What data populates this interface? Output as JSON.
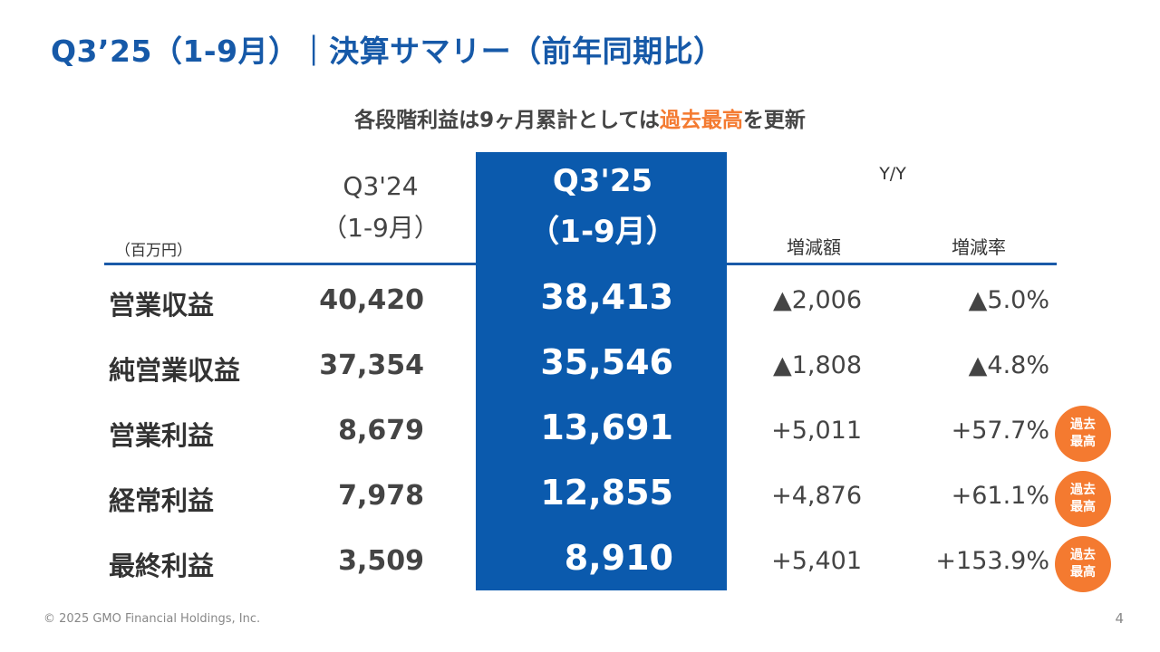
{
  "title": "Q3’25（1-9月）｜決算サマリー（前年同期比）",
  "subtitle": {
    "before": "各段階利益は9ヶ月累計としては",
    "highlight": "過去最高",
    "after": "を更新"
  },
  "table": {
    "unit": "（百万円）",
    "header_prev": {
      "line1": "Q3'24",
      "line2": "（1-9月）"
    },
    "header_cur": {
      "line1": "Q3'25",
      "line2": "（1-9月）"
    },
    "header_yy": "Y/Y",
    "header_change_amount": "増減額",
    "header_change_rate": "増減率",
    "badge": {
      "line1": "過去",
      "line2": "最高"
    },
    "rows": [
      {
        "label": "営業収益",
        "prev": "40,420",
        "cur": "38,413",
        "change_amount": "▲2,006",
        "change_rate": "▲5.0%",
        "record": false
      },
      {
        "label": "純営業収益",
        "prev": "37,354",
        "cur": "35,546",
        "change_amount": "▲1,808",
        "change_rate": "▲4.8%",
        "record": false
      },
      {
        "label": "営業利益",
        "prev": "8,679",
        "cur": "13,691",
        "change_amount": "+5,011",
        "change_rate": "+57.7%",
        "record": true
      },
      {
        "label": "経常利益",
        "prev": "7,978",
        "cur": "12,855",
        "change_amount": "+4,876",
        "change_rate": "+61.1%",
        "record": true
      },
      {
        "label": "最終利益",
        "prev": "3,509",
        "cur": "8,910",
        "change_amount": "+5,401",
        "change_rate": "+153.9%",
        "record": true
      }
    ]
  },
  "footer": "© 2025 GMO Financial Holdings, Inc.",
  "page_number": "4",
  "colors": {
    "brand_blue": "#0b5aad",
    "title_blue": "#1659a8",
    "accent_orange": "#f47a30"
  }
}
